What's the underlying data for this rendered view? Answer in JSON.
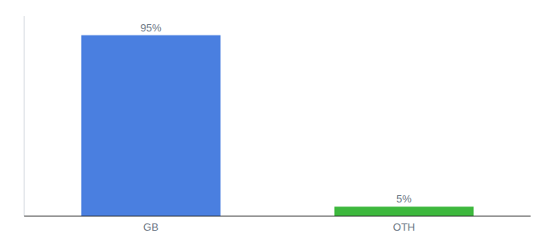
{
  "chart_data": {
    "type": "bar",
    "categories": [
      "GB",
      "OTH"
    ],
    "values": [
      95,
      5
    ],
    "value_labels": [
      "95%",
      "5%"
    ],
    "colors": [
      "#4a7fe0",
      "#3db83d"
    ],
    "ylim": [
      0,
      105
    ],
    "data_labels": true,
    "tick_labels": "x",
    "grid": false
  }
}
